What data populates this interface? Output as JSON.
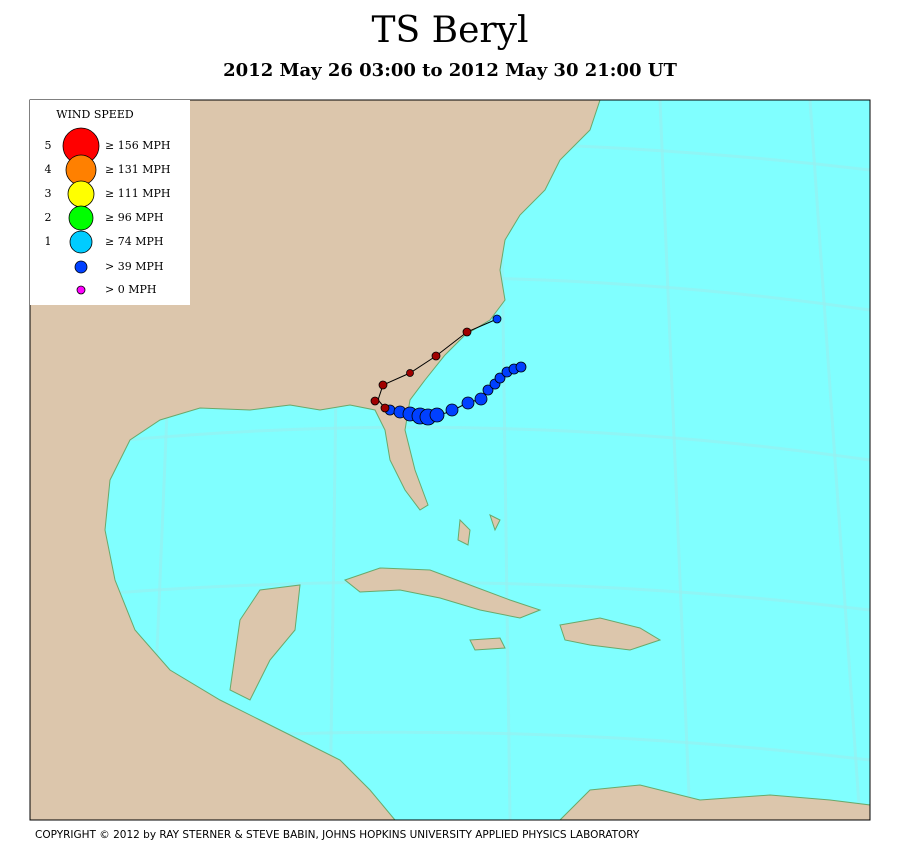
{
  "header": {
    "title": "TS Beryl",
    "subtitle": "2012 May 26 03:00 to 2012 May 30 21:00 UT"
  },
  "legend": {
    "title": "WIND SPEED",
    "entries": [
      {
        "category": "5",
        "label": "≥ 156 MPH",
        "color": "#ff0000"
      },
      {
        "category": "4",
        "label": "≥ 131 MPH",
        "color": "#ff8000"
      },
      {
        "category": "3",
        "label": "≥ 111 MPH",
        "color": "#ffff00"
      },
      {
        "category": "2",
        "label": "≥ 96 MPH",
        "color": "#00ff00"
      },
      {
        "category": "1",
        "label": "≥ 74 MPH",
        "color": "#00ccff"
      },
      {
        "category": null,
        "label": "> 39 MPH",
        "color": "#0040ff"
      },
      {
        "category": null,
        "label": "> 0 MPH",
        "color": "#ff00ff"
      }
    ]
  },
  "footer": {
    "copyright": "COPYRIGHT © 2012 by RAY STERNER & STEVE BABIN, JOHNS HOPKINS UNIVERSITY APPLIED PHYSICS LABORATORY"
  }
}
